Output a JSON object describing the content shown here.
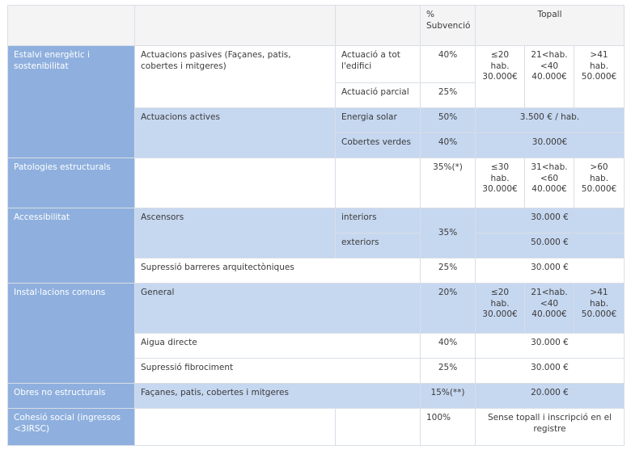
{
  "header": {
    "subvencio": "% Subvenció",
    "topall": "Topall"
  },
  "rows": {
    "estalvi": {
      "category": "Estalvi energètic i sostenibilitat",
      "pasives": {
        "label": "Actuacions pasives (Façanes, patis, cobertes i mitgeres)",
        "tot": {
          "label": "Actuació a tot l'edifici",
          "pct": "40%",
          "t1": "≤20 hab. 30.000€",
          "t2": "21<hab. <40 40.000€",
          "t3": ">41 hab. 50.000€"
        },
        "parcial": {
          "label": "Actuació parcial",
          "pct": "25%"
        }
      },
      "actives": {
        "label": "Actuacions actives",
        "solar": {
          "label": "Energia solar",
          "pct": "50%",
          "topall": "3.500 € / hab."
        },
        "verdes": {
          "label": "Cobertes verdes",
          "pct": "40%",
          "topall": "30.000€"
        }
      }
    },
    "patologies": {
      "category": "Patologies estructurals",
      "pct": "35%(*)",
      "t1": "≤30 hab. 30.000€",
      "t2": "31<hab. <60 40.000€",
      "t3": ">60 hab. 50.000€"
    },
    "accessibilitat": {
      "category": "Accessibilitat",
      "ascensors": {
        "label": "Ascensors",
        "pct": "35%",
        "interiors": {
          "label": "interiors",
          "topall": "30.000 €"
        },
        "exteriors": {
          "label": "exteriors",
          "topall": "50.000 €"
        }
      },
      "barreres": {
        "label": "Supressió barreres arquitectòniques",
        "pct": "25%",
        "topall": "30.000 €"
      }
    },
    "installacions": {
      "category": "Instal·lacions comuns",
      "general": {
        "label": "General",
        "pct": "20%",
        "t1": "≤20 hab. 30.000€",
        "t2": "21<hab. <40 40.000€",
        "t3": ">41 hab. 50.000€"
      },
      "aigua": {
        "label": "Aigua directe",
        "pct": "40%",
        "topall": "30.000 €"
      },
      "fibrociment": {
        "label": "Supressió fibrociment",
        "pct": "25%",
        "topall": "30.000 €"
      }
    },
    "obres": {
      "category": "Obres no estructurals",
      "label": "Façanes, patis, cobertes i mitgeres",
      "pct": "15%(**)",
      "topall": "20.000 €"
    },
    "cohesio": {
      "category": "Cohesió social (ingressos <3IRSC)",
      "pct": "100%",
      "topall": "Sense topall i inscripció en el registre"
    }
  }
}
